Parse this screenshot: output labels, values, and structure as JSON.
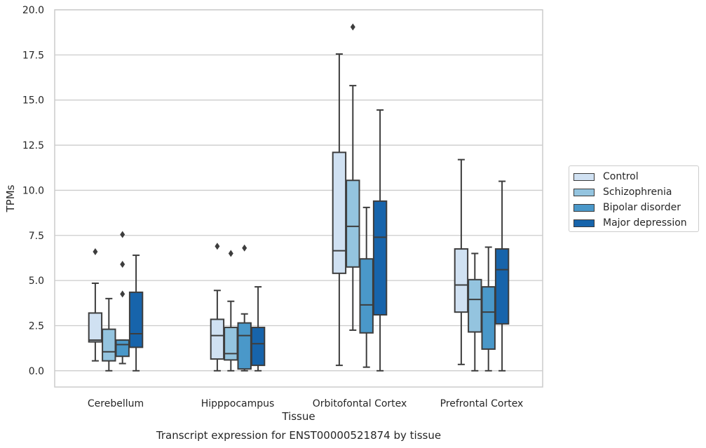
{
  "chart_data": {
    "type": "box",
    "title": "Transcript expression for ENST00000521874 by tissue",
    "xlabel": "Tissue",
    "ylabel": "TPMs",
    "ylim": [
      -0.9,
      20.0
    ],
    "yticks": [
      "0.0",
      "2.5",
      "5.0",
      "7.5",
      "10.0",
      "12.5",
      "15.0",
      "17.5",
      "20.0"
    ],
    "grid": "horizontal",
    "legend_position": "right",
    "categories": [
      "Cerebellum",
      "Hipppocampus",
      "Orbitofontal Cortex",
      "Prefrontal Cortex"
    ],
    "series": [
      {
        "name": "Control",
        "color": "#d0e1f2",
        "boxes": [
          {
            "whisker_low": 0.55,
            "q1": 1.6,
            "median": 1.7,
            "q3": 3.2,
            "whisker_high": 4.85,
            "outliers": [
              6.6
            ]
          },
          {
            "whisker_low": 0.0,
            "q1": 0.65,
            "median": 1.95,
            "q3": 2.85,
            "whisker_high": 4.45,
            "outliers": [
              6.9
            ]
          },
          {
            "whisker_low": 0.3,
            "q1": 5.4,
            "median": 6.65,
            "q3": 12.1,
            "whisker_high": 17.55,
            "outliers": []
          },
          {
            "whisker_low": 0.35,
            "q1": 3.25,
            "median": 4.75,
            "q3": 6.75,
            "whisker_high": 11.7,
            "outliers": []
          }
        ]
      },
      {
        "name": "Schizophrenia",
        "color": "#94c4df",
        "boxes": [
          {
            "whisker_low": 0.0,
            "q1": 0.55,
            "median": 1.05,
            "q3": 2.3,
            "whisker_high": 4.0,
            "outliers": []
          },
          {
            "whisker_low": 0.0,
            "q1": 0.6,
            "median": 0.95,
            "q3": 2.4,
            "whisker_high": 3.85,
            "outliers": [
              6.5
            ]
          },
          {
            "whisker_low": 2.25,
            "q1": 5.75,
            "median": 8.0,
            "q3": 10.55,
            "whisker_high": 15.8,
            "outliers": [
              19.05
            ]
          },
          {
            "whisker_low": 0.0,
            "q1": 2.15,
            "median": 3.95,
            "q3": 5.05,
            "whisker_high": 6.5,
            "outliers": []
          }
        ]
      },
      {
        "name": "Bipolar disorder",
        "color": "#4a98c9",
        "boxes": [
          {
            "whisker_low": 0.4,
            "q1": 0.8,
            "median": 1.45,
            "q3": 1.7,
            "whisker_high": 1.7,
            "outliers": [
              4.25,
              5.9,
              7.55
            ]
          },
          {
            "whisker_low": 0.0,
            "q1": 0.1,
            "median": 1.95,
            "q3": 2.65,
            "whisker_high": 3.15,
            "outliers": [
              6.8
            ]
          },
          {
            "whisker_low": 0.2,
            "q1": 2.1,
            "median": 3.65,
            "q3": 6.2,
            "whisker_high": 9.05,
            "outliers": []
          },
          {
            "whisker_low": 0.0,
            "q1": 1.2,
            "median": 3.25,
            "q3": 4.65,
            "whisker_high": 6.85,
            "outliers": []
          }
        ]
      },
      {
        "name": "Major depression",
        "color": "#1764ab",
        "boxes": [
          {
            "whisker_low": 0.0,
            "q1": 1.3,
            "median": 2.05,
            "q3": 4.35,
            "whisker_high": 6.4,
            "outliers": []
          },
          {
            "whisker_low": 0.0,
            "q1": 0.3,
            "median": 1.5,
            "q3": 2.4,
            "whisker_high": 4.65,
            "outliers": []
          },
          {
            "whisker_low": 0.0,
            "q1": 3.1,
            "median": 7.4,
            "q3": 9.4,
            "whisker_high": 14.45,
            "outliers": []
          },
          {
            "whisker_low": 0.0,
            "q1": 2.6,
            "median": 5.6,
            "q3": 6.75,
            "whisker_high": 10.5,
            "outliers": []
          }
        ]
      }
    ]
  }
}
